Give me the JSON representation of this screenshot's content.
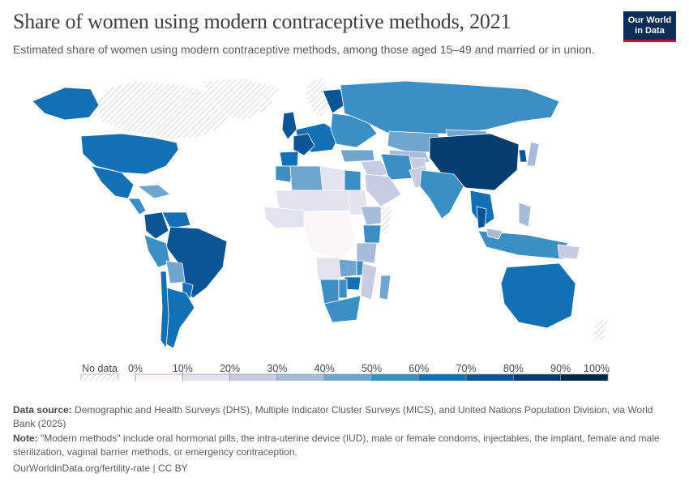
{
  "header": {
    "title": "Share of women using modern contraceptive methods, 2021",
    "subtitle": "Estimated share of women using modern contraceptive methods, among those aged 15–49 and married or in union.",
    "logo_line1": "Our World",
    "logo_line2": "in Data"
  },
  "legend": {
    "no_data_label": "No data",
    "bins": [
      {
        "label_start": "0%",
        "label_end": "10%",
        "color": "#fdf6f8"
      },
      {
        "label_start": "10%",
        "label_end": "20%",
        "color": "#e3e2ef"
      },
      {
        "label_start": "20%",
        "label_end": "30%",
        "color": "#c8cce3"
      },
      {
        "label_start": "30%",
        "label_end": "40%",
        "color": "#a6bcd9"
      },
      {
        "label_start": "40%",
        "label_end": "50%",
        "color": "#6fa5cf"
      },
      {
        "label_start": "50%",
        "label_end": "60%",
        "color": "#3b8fc4"
      },
      {
        "label_start": "60%",
        "label_end": "70%",
        "color": "#1470b4"
      },
      {
        "label_start": "70%",
        "label_end": "80%",
        "color": "#0b5596"
      },
      {
        "label_start": "80%",
        "label_end": "90%",
        "color": "#053d6e"
      },
      {
        "label_start": "90%",
        "label_end": "100%",
        "color": "#04264a"
      }
    ],
    "tick_labels": [
      "0%",
      "10%",
      "20%",
      "30%",
      "40%",
      "50%",
      "60%",
      "70%",
      "80%",
      "90%",
      "100%"
    ]
  },
  "map_regions": [
    {
      "name": "Canada",
      "bin": "no-data"
    },
    {
      "name": "Greenland",
      "bin": "no-data"
    },
    {
      "name": "Alaska (United States)",
      "bin": "60-70"
    },
    {
      "name": "United States",
      "bin": "60-70"
    },
    {
      "name": "Mexico",
      "bin": "60-70"
    },
    {
      "name": "Central America",
      "bin": "50-60"
    },
    {
      "name": "Caribbean",
      "bin": "40-50"
    },
    {
      "name": "Colombia",
      "bin": "70-80"
    },
    {
      "name": "Venezuela",
      "bin": "60-70"
    },
    {
      "name": "Brazil",
      "bin": "70-80"
    },
    {
      "name": "Peru",
      "bin": "50-60"
    },
    {
      "name": "Bolivia",
      "bin": "40-50"
    },
    {
      "name": "Paraguay",
      "bin": "60-70"
    },
    {
      "name": "Argentina",
      "bin": "60-70"
    },
    {
      "name": "Chile",
      "bin": "60-70"
    },
    {
      "name": "Western Europe",
      "bin": "60-70"
    },
    {
      "name": "United Kingdom",
      "bin": "70-80"
    },
    {
      "name": "France",
      "bin": "70-80"
    },
    {
      "name": "Iberia",
      "bin": "60-70"
    },
    {
      "name": "Scandinavia",
      "bin": "no-data"
    },
    {
      "name": "Finland",
      "bin": "70-80"
    },
    {
      "name": "Eastern Europe",
      "bin": "50-60"
    },
    {
      "name": "Russia",
      "bin": "50-60"
    },
    {
      "name": "Kazakhstan",
      "bin": "40-50"
    },
    {
      "name": "Central Asia",
      "bin": "30-40"
    },
    {
      "name": "Mongolia",
      "bin": "40-50"
    },
    {
      "name": "China",
      "bin": "80-90"
    },
    {
      "name": "Korea",
      "bin": "70-80"
    },
    {
      "name": "Japan",
      "bin": "30-40"
    },
    {
      "name": "Turkey",
      "bin": "40-50"
    },
    {
      "name": "Middle East",
      "bin": "20-30"
    },
    {
      "name": "Iran",
      "bin": "50-60"
    },
    {
      "name": "Arabian Peninsula",
      "bin": "20-30"
    },
    {
      "name": "Afghanistan",
      "bin": "20-30"
    },
    {
      "name": "Pakistan",
      "bin": "20-30"
    },
    {
      "name": "India",
      "bin": "50-60"
    },
    {
      "name": "Indochina",
      "bin": "60-70"
    },
    {
      "name": "Thailand",
      "bin": "70-80"
    },
    {
      "name": "Indonesia",
      "bin": "50-60"
    },
    {
      "name": "Malaysia",
      "bin": "30-40"
    },
    {
      "name": "Philippines",
      "bin": "30-40"
    },
    {
      "name": "Papua New Guinea",
      "bin": "20-30"
    },
    {
      "name": "Australia",
      "bin": "60-70"
    },
    {
      "name": "New Zealand",
      "bin": "no-data"
    },
    {
      "name": "Morocco",
      "bin": "50-60"
    },
    {
      "name": "Algeria",
      "bin": "40-50"
    },
    {
      "name": "Libya",
      "bin": "10-20"
    },
    {
      "name": "Egypt",
      "bin": "50-60"
    },
    {
      "name": "Sahel",
      "bin": "10-20"
    },
    {
      "name": "West Africa",
      "bin": "10-20"
    },
    {
      "name": "Central Africa",
      "bin": "0-10"
    },
    {
      "name": "Sudan",
      "bin": "10-20"
    },
    {
      "name": "Ethiopia",
      "bin": "30-40"
    },
    {
      "name": "Somalia",
      "bin": "no-data"
    },
    {
      "name": "Kenya",
      "bin": "50-60"
    },
    {
      "name": "Tanzania",
      "bin": "30-40"
    },
    {
      "name": "Angola",
      "bin": "10-20"
    },
    {
      "name": "Zambia",
      "bin": "40-50"
    },
    {
      "name": "Malawi",
      "bin": "50-60"
    },
    {
      "name": "Mozambique",
      "bin": "20-30"
    },
    {
      "name": "Zimbabwe",
      "bin": "60-70"
    },
    {
      "name": "Namibia",
      "bin": "50-60"
    },
    {
      "name": "Botswana",
      "bin": "50-60"
    },
    {
      "name": "South Africa",
      "bin": "50-60"
    },
    {
      "name": "Madagascar",
      "bin": "40-50"
    }
  ],
  "footer": {
    "source_label": "Data source:",
    "source_text": "Demographic and Health Surveys (DHS), Multiple Indicator Cluster Surveys (MICS), and United Nations Population Division, via World Bank (2025)",
    "note_label": "Note:",
    "note_text": "\"Modern methods\" include oral hormonal pills, the intra-uterine device (IUD), male or female condoms, injectables, the implant, female and male sterilization, vaginal barrier methods, or emergency contraception.",
    "url_text": "OurWorldinData.org/fertility-rate | CC BY"
  }
}
